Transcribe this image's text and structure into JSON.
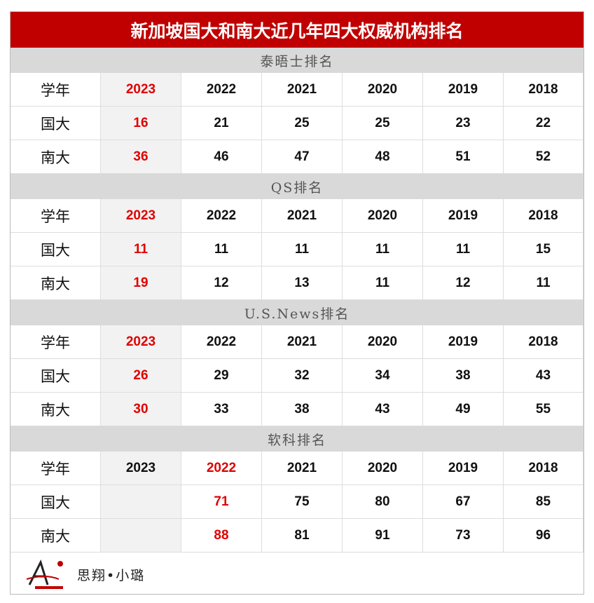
{
  "title": "新加坡国大和南大近几年四大权威机构排名",
  "sections": [
    {
      "heading": "泰晤士排名",
      "year_label": "学年",
      "years": [
        2023,
        2022,
        2021,
        2020,
        2019,
        2018
      ],
      "rows": [
        {
          "label": "国大",
          "values": [
            16,
            21,
            25,
            25,
            23,
            22
          ]
        },
        {
          "label": "南大",
          "values": [
            36,
            46,
            47,
            48,
            51,
            52
          ]
        }
      ]
    },
    {
      "heading": "QS排名",
      "year_label": "学年",
      "years": [
        2023,
        2022,
        2021,
        2020,
        2019,
        2018
      ],
      "rows": [
        {
          "label": "国大",
          "values": [
            11,
            11,
            11,
            11,
            11,
            15
          ]
        },
        {
          "label": "南大",
          "values": [
            19,
            12,
            13,
            11,
            12,
            11
          ]
        }
      ]
    },
    {
      "heading": "U.S.News排名",
      "year_label": "学年",
      "years": [
        2023,
        2022,
        2021,
        2020,
        2019,
        2018
      ],
      "rows": [
        {
          "label": "国大",
          "values": [
            26,
            29,
            32,
            34,
            38,
            43
          ]
        },
        {
          "label": "南大",
          "values": [
            30,
            33,
            38,
            43,
            49,
            55
          ]
        }
      ]
    },
    {
      "heading": "软科排名",
      "year_label": "学年",
      "years": [
        2023,
        2022,
        2021,
        2020,
        2019,
        2018
      ],
      "rows": [
        {
          "label": "国大",
          "values": [
            null,
            71,
            75,
            80,
            67,
            85
          ]
        },
        {
          "label": "南大",
          "values": [
            null,
            88,
            81,
            91,
            73,
            96
          ]
        }
      ]
    }
  ],
  "footer": {
    "author": "思翔•小璐"
  }
}
